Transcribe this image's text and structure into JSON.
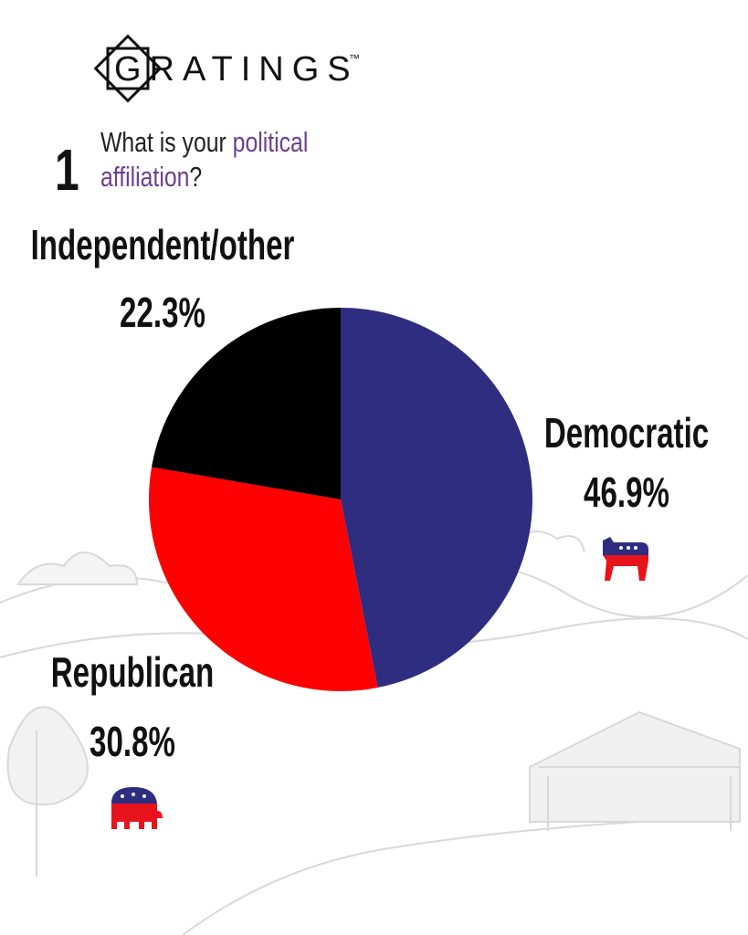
{
  "brand": "GRATINGS",
  "trademark": "™",
  "question_number": "1",
  "question": [
    "What is your",
    "political",
    "affiliation",
    "?"
  ],
  "chart_data": {
    "type": "pie",
    "categories": [
      "Democratic",
      "Republican",
      "Independent/other"
    ],
    "values": [
      46.9,
      30.8,
      22.3
    ],
    "value_labels": [
      "46.9%",
      "30.8%",
      "22.3%"
    ],
    "colors": [
      "#2e2d80",
      "#ff0000",
      "#000000"
    ]
  }
}
